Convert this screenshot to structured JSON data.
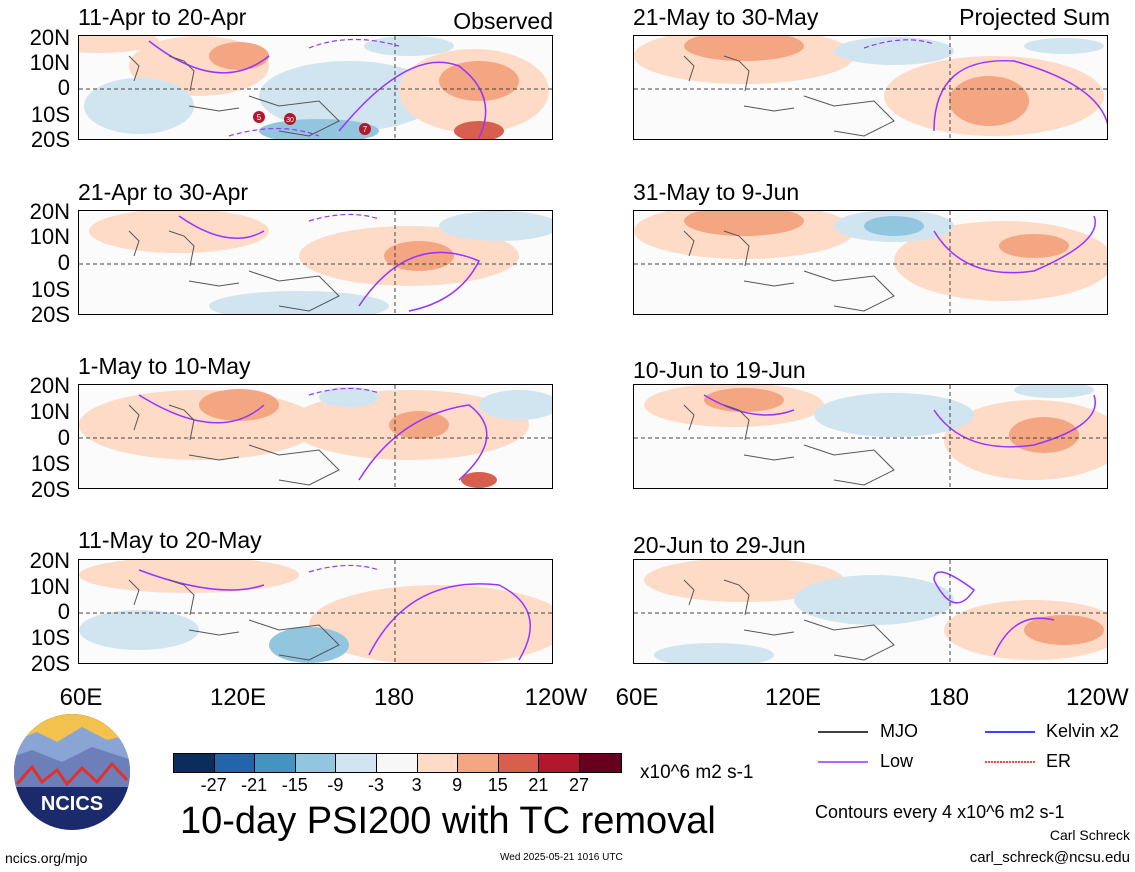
{
  "observed_label": "Observed",
  "projected_label": "Projected Sum",
  "panels": {
    "p1": "11-Apr to 20-Apr",
    "p2": "21-Apr to 30-Apr",
    "p3": "1-May to 10-May",
    "p4": "11-May to 20-May",
    "p5": "21-May to 30-May",
    "p6": "31-May to 9-Jun",
    "p7": "10-Jun to 19-Jun",
    "p8": "20-Jun to 29-Jun"
  },
  "lat_labels": [
    "20N",
    "10N",
    "0",
    "10S",
    "20S"
  ],
  "lon_labels": [
    "60E",
    "120E",
    "180",
    "120W"
  ],
  "tc_markers": [
    "5",
    "30",
    "7"
  ],
  "legend": {
    "mjo": "MJO",
    "kelvin": "Kelvin x2",
    "low": "Low",
    "er": "ER",
    "colors": {
      "mjo": "#000000",
      "kelvin": "#0000ff",
      "low": "#9933ff",
      "er": "#ff0000"
    }
  },
  "colorbar": {
    "colors": [
      "#0b2d5c",
      "#2166ac",
      "#4393c3",
      "#92c5de",
      "#d1e5f0",
      "#f7f7f7",
      "#fddbc7",
      "#f4a582",
      "#d6604d",
      "#b2182b",
      "#67001f"
    ],
    "ticks": [
      "-27",
      "-21",
      "-15",
      "-9",
      "-3",
      "3",
      "9",
      "15",
      "21",
      "27"
    ],
    "units": "x10^6 m2 s-1"
  },
  "title": "10-day PSI200 with TC removal",
  "logo_text": "NCICS",
  "contours_note": "Contours every 4 x10^6 m2 s-1",
  "author": "Carl Schreck",
  "email": "carl_schreck@ncsu.edu",
  "website": "ncics.org/mjo",
  "timestamp": "Wed 2025-05-21 1016 UTC"
}
